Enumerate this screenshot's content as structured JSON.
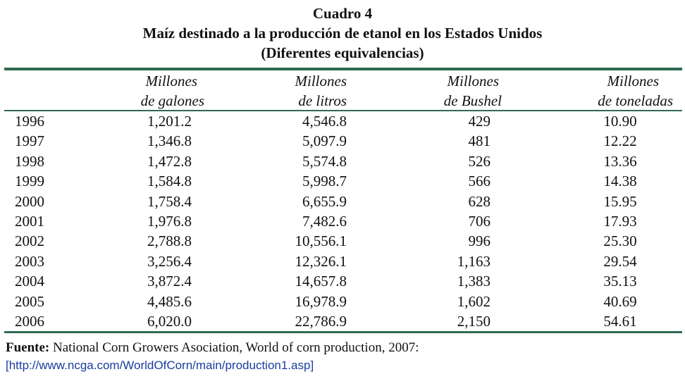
{
  "title": {
    "line1": "Cuadro 4",
    "line2": "Maíz destinado a la producción de etanol en los Estados Unidos",
    "line3": "(Diferentes equivalencias)"
  },
  "headers": [
    {
      "line1": "Millones",
      "line2": "de galones"
    },
    {
      "line1": "Millones",
      "line2": "de litros"
    },
    {
      "line1": "Millones",
      "line2": "de Bushel"
    },
    {
      "line1": "Millones",
      "line2": "de toneladas"
    }
  ],
  "rows": [
    {
      "year": "1996",
      "galones": "1,201.2",
      "litros": "4,546.8",
      "bushel": "429",
      "toneladas": "10.90"
    },
    {
      "year": "1997",
      "galones": "1,346.8",
      "litros": "5,097.9",
      "bushel": "481",
      "toneladas": "12.22"
    },
    {
      "year": "1998",
      "galones": "1,472.8",
      "litros": "5,574.8",
      "bushel": "526",
      "toneladas": "13.36"
    },
    {
      "year": "1999",
      "galones": "1,584.8",
      "litros": "5,998.7",
      "bushel": "566",
      "toneladas": "14.38"
    },
    {
      "year": "2000",
      "galones": "1,758.4",
      "litros": "6,655.9",
      "bushel": "628",
      "toneladas": "15.95"
    },
    {
      "year": "2001",
      "galones": "1,976.8",
      "litros": "7,482.6",
      "bushel": "706",
      "toneladas": "17.93"
    },
    {
      "year": "2002",
      "galones": "2,788.8",
      "litros": "10,556.1",
      "bushel": "996",
      "toneladas": "25.30"
    },
    {
      "year": "2003",
      "galones": "3,256.4",
      "litros": "12,326.1",
      "bushel": "1,163",
      "toneladas": "29.54"
    },
    {
      "year": "2004",
      "galones": "3,872.4",
      "litros": "14,657.8",
      "bushel": "1,383",
      "toneladas": "35.13"
    },
    {
      "year": "2005",
      "galones": "4,485.6",
      "litros": "16,978.9",
      "bushel": "1,602",
      "toneladas": "40.69"
    },
    {
      "year": "2006",
      "galones": "6,020.0",
      "litros": "22,786.9",
      "bushel": "2,150",
      "toneladas": "54.61"
    }
  ],
  "footer": {
    "label": "Fuente:",
    "text": " National Corn Growers Asociation, World of corn production, 2007:",
    "link": "[http://www.ncga.com/WorldOfCorn/main/production1.asp]"
  },
  "colors": {
    "rule": "#2e6b4f",
    "link": "#1a3d9e"
  }
}
